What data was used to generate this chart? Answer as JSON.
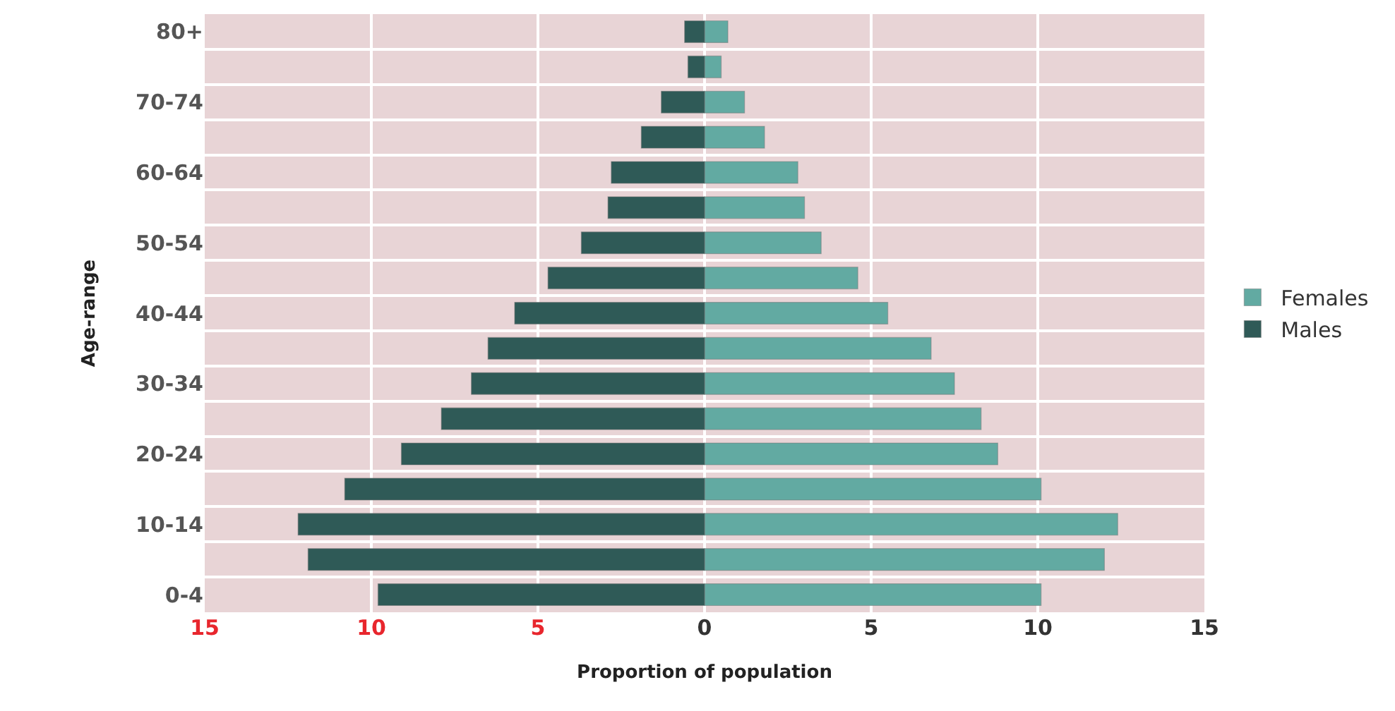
{
  "chart_data": {
    "type": "bar",
    "orientation": "horizontal",
    "xlabel": "Proportion of population",
    "ylabel": "Age-range",
    "categories": [
      "80+",
      null,
      "70-74",
      null,
      "60-64",
      null,
      "50-54",
      null,
      "40-44",
      null,
      "30-34",
      null,
      "20-24",
      null,
      "10-14",
      null,
      "0-4"
    ],
    "series": [
      {
        "name": "Females",
        "color": "#62aaa2",
        "values": [
          0.7,
          0.5,
          1.2,
          1.8,
          2.8,
          3.0,
          3.5,
          4.6,
          5.5,
          6.8,
          7.5,
          8.3,
          8.8,
          10.1,
          12.4,
          12.0,
          10.1
        ]
      },
      {
        "name": "Males",
        "color": "#2f5a57",
        "values": [
          -0.6,
          -0.5,
          -1.3,
          -1.9,
          -2.8,
          -2.9,
          -3.7,
          -4.7,
          -5.7,
          -6.5,
          -7.0,
          -7.9,
          -9.1,
          -10.8,
          -12.2,
          -11.9,
          -9.8
        ]
      }
    ],
    "xlim": [
      -15,
      15
    ],
    "xticks": [
      {
        "value": -15,
        "label": "15"
      },
      {
        "value": -10,
        "label": "10"
      },
      {
        "value": -5,
        "label": "5"
      },
      0,
      5,
      10,
      15
    ],
    "stacked": true,
    "grid": true,
    "legend": "right"
  }
}
